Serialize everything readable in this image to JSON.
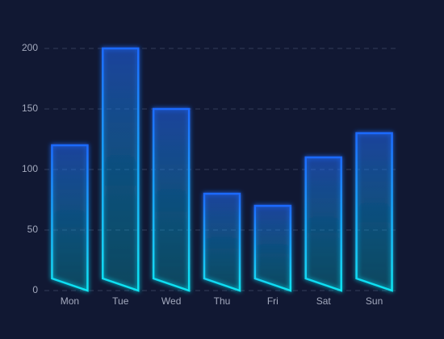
{
  "chart_data": {
    "type": "bar",
    "categories": [
      "Mon",
      "Tue",
      "Wed",
      "Thu",
      "Fri",
      "Sat",
      "Sun"
    ],
    "values": [
      120,
      200,
      150,
      80,
      70,
      110,
      130
    ],
    "gradient": [
      "#1f6bff",
      "#10e4f2"
    ],
    "ylim": [
      0,
      200
    ],
    "yticks": [
      0,
      50,
      100,
      150,
      200
    ],
    "grid": true
  }
}
